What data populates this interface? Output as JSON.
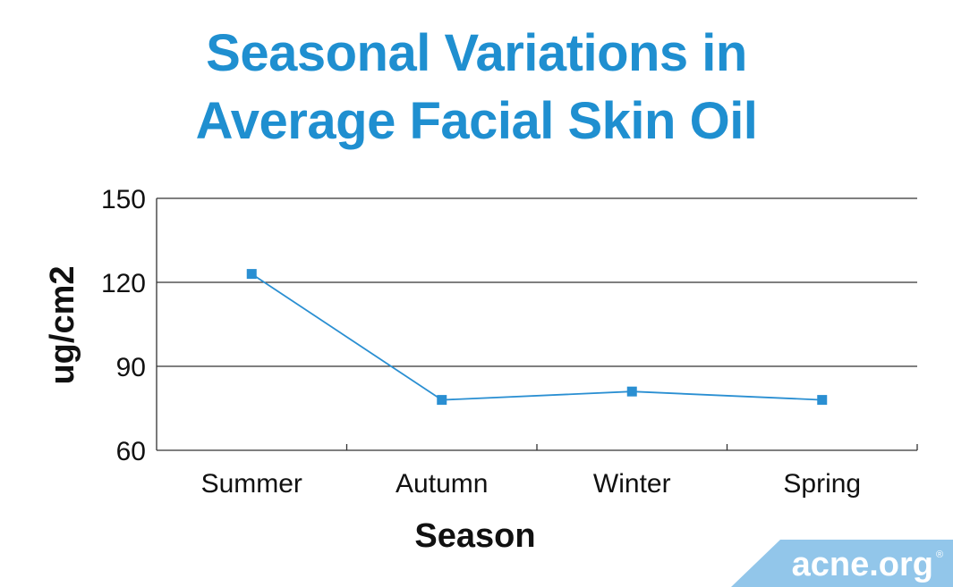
{
  "chart_data": {
    "type": "line",
    "title_lines": [
      "Seasonal Variations in",
      "Average Facial Skin Oil"
    ],
    "xlabel": "Season",
    "ylabel": "ug/cm2",
    "categories": [
      "Summer",
      "Autumn",
      "Winter",
      "Spring"
    ],
    "series": [
      {
        "values": [
          123,
          78,
          81,
          78
        ]
      }
    ],
    "ylim": [
      60,
      150
    ],
    "yticks": [
      60,
      90,
      120,
      150
    ],
    "grid": true,
    "legend": "none",
    "colors": {
      "line": "#2a8fd2",
      "title": "#1f8fd0",
      "grid": "#333333"
    }
  },
  "brand": {
    "name": "acne.org",
    "registered_mark": "®",
    "color": "#92c6ea"
  }
}
